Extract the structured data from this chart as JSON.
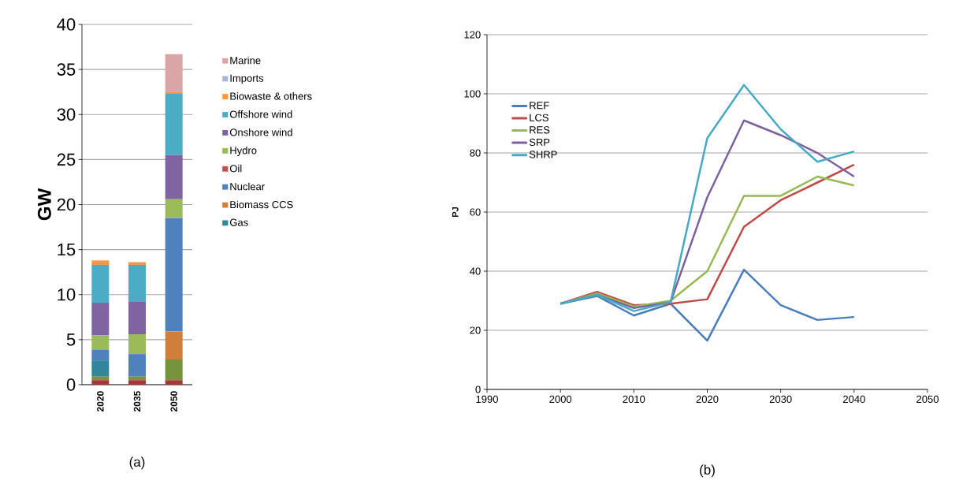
{
  "chart_data": [
    {
      "type": "bar",
      "stacked": true,
      "ylabel": "**GW**",
      "categories": [
        "2020",
        "2035",
        "2050"
      ],
      "series": [
        {
          "color": "#a0393c",
          "values": [
            0.5,
            0.5,
            0.5
          ]
        },
        {
          "color": "#77933c",
          "values": [
            0.4,
            0.4,
            2.3
          ]
        },
        {
          "name": "Gas",
          "color": "#31859c",
          "values": [
            1.8,
            0,
            0
          ]
        },
        {
          "name": "Biomass CCS",
          "color": "#d07f3a",
          "values": [
            0,
            0,
            3.1
          ]
        },
        {
          "name": "Nuclear",
          "color": "#4f81bd",
          "values": [
            1.2,
            2.5,
            12.6
          ]
        },
        {
          "name": "Oil",
          "color": "#c0504d",
          "values": [
            0,
            0,
            0
          ]
        },
        {
          "name": "Hydro",
          "color": "#9bbb59",
          "values": [
            1.6,
            2.2,
            2.1
          ]
        },
        {
          "name": "Onshore wind",
          "color": "#8064a2",
          "values": [
            3.6,
            3.6,
            4.9
          ]
        },
        {
          "name": "Offshore wind",
          "color": "#4bacc6",
          "values": [
            4.2,
            4.1,
            6.8
          ]
        },
        {
          "name": "Biowaste & others",
          "color": "#f79646",
          "values": [
            0.5,
            0.3,
            0.2
          ]
        },
        {
          "name": "Imports",
          "color": "#a6b9db",
          "values": [
            0,
            0,
            0
          ]
        },
        {
          "name": "Marine",
          "color": "#d9a5a5",
          "values": [
            0,
            0,
            4.2
          ]
        }
      ],
      "ylim": [
        0,
        40
      ],
      "yticks": [
        0,
        5,
        10,
        15,
        20,
        25,
        30,
        35,
        40
      ],
      "grid": "y",
      "legend": "right",
      "annotations": [
        "(a)"
      ]
    },
    {
      "type": "line",
      "ylabel": "**PJ**",
      "x": [
        2000,
        2005,
        2010,
        2015,
        2020,
        2025,
        2030,
        2035,
        2040
      ],
      "series": [
        {
          "name": "REF",
          "color": "#4a7ebb",
          "values": [
            29,
            31.6,
            25,
            29,
            16.5,
            40.5,
            28.5,
            23.5,
            24.5
          ]
        },
        {
          "name": "LCS",
          "color": "#be4b48",
          "values": [
            29,
            33,
            28.5,
            29,
            30.5,
            55,
            64,
            70,
            76
          ]
        },
        {
          "name": "RES",
          "color": "#98b954",
          "values": [
            29,
            32.5,
            28,
            30,
            40,
            65.5,
            65.5,
            72,
            69
          ]
        },
        {
          "name": "SRP",
          "color": "#7d60a0",
          "values": [
            29,
            32,
            27.5,
            29.5,
            65,
            91,
            86,
            80,
            72
          ]
        },
        {
          "name": "SHRP",
          "color": "#46aac5",
          "values": [
            29,
            32,
            26.5,
            29.5,
            85,
            103,
            88,
            77,
            80.5
          ]
        }
      ],
      "xlim": [
        1990,
        2050
      ],
      "xticks": [
        1990,
        2000,
        2010,
        2020,
        2030,
        2040,
        2050
      ],
      "ylim": [
        0,
        120
      ],
      "yticks": [
        0,
        20,
        40,
        60,
        80,
        100,
        120
      ],
      "grid": "y",
      "legend": "left",
      "annotations": [
        "(b)"
      ]
    }
  ]
}
